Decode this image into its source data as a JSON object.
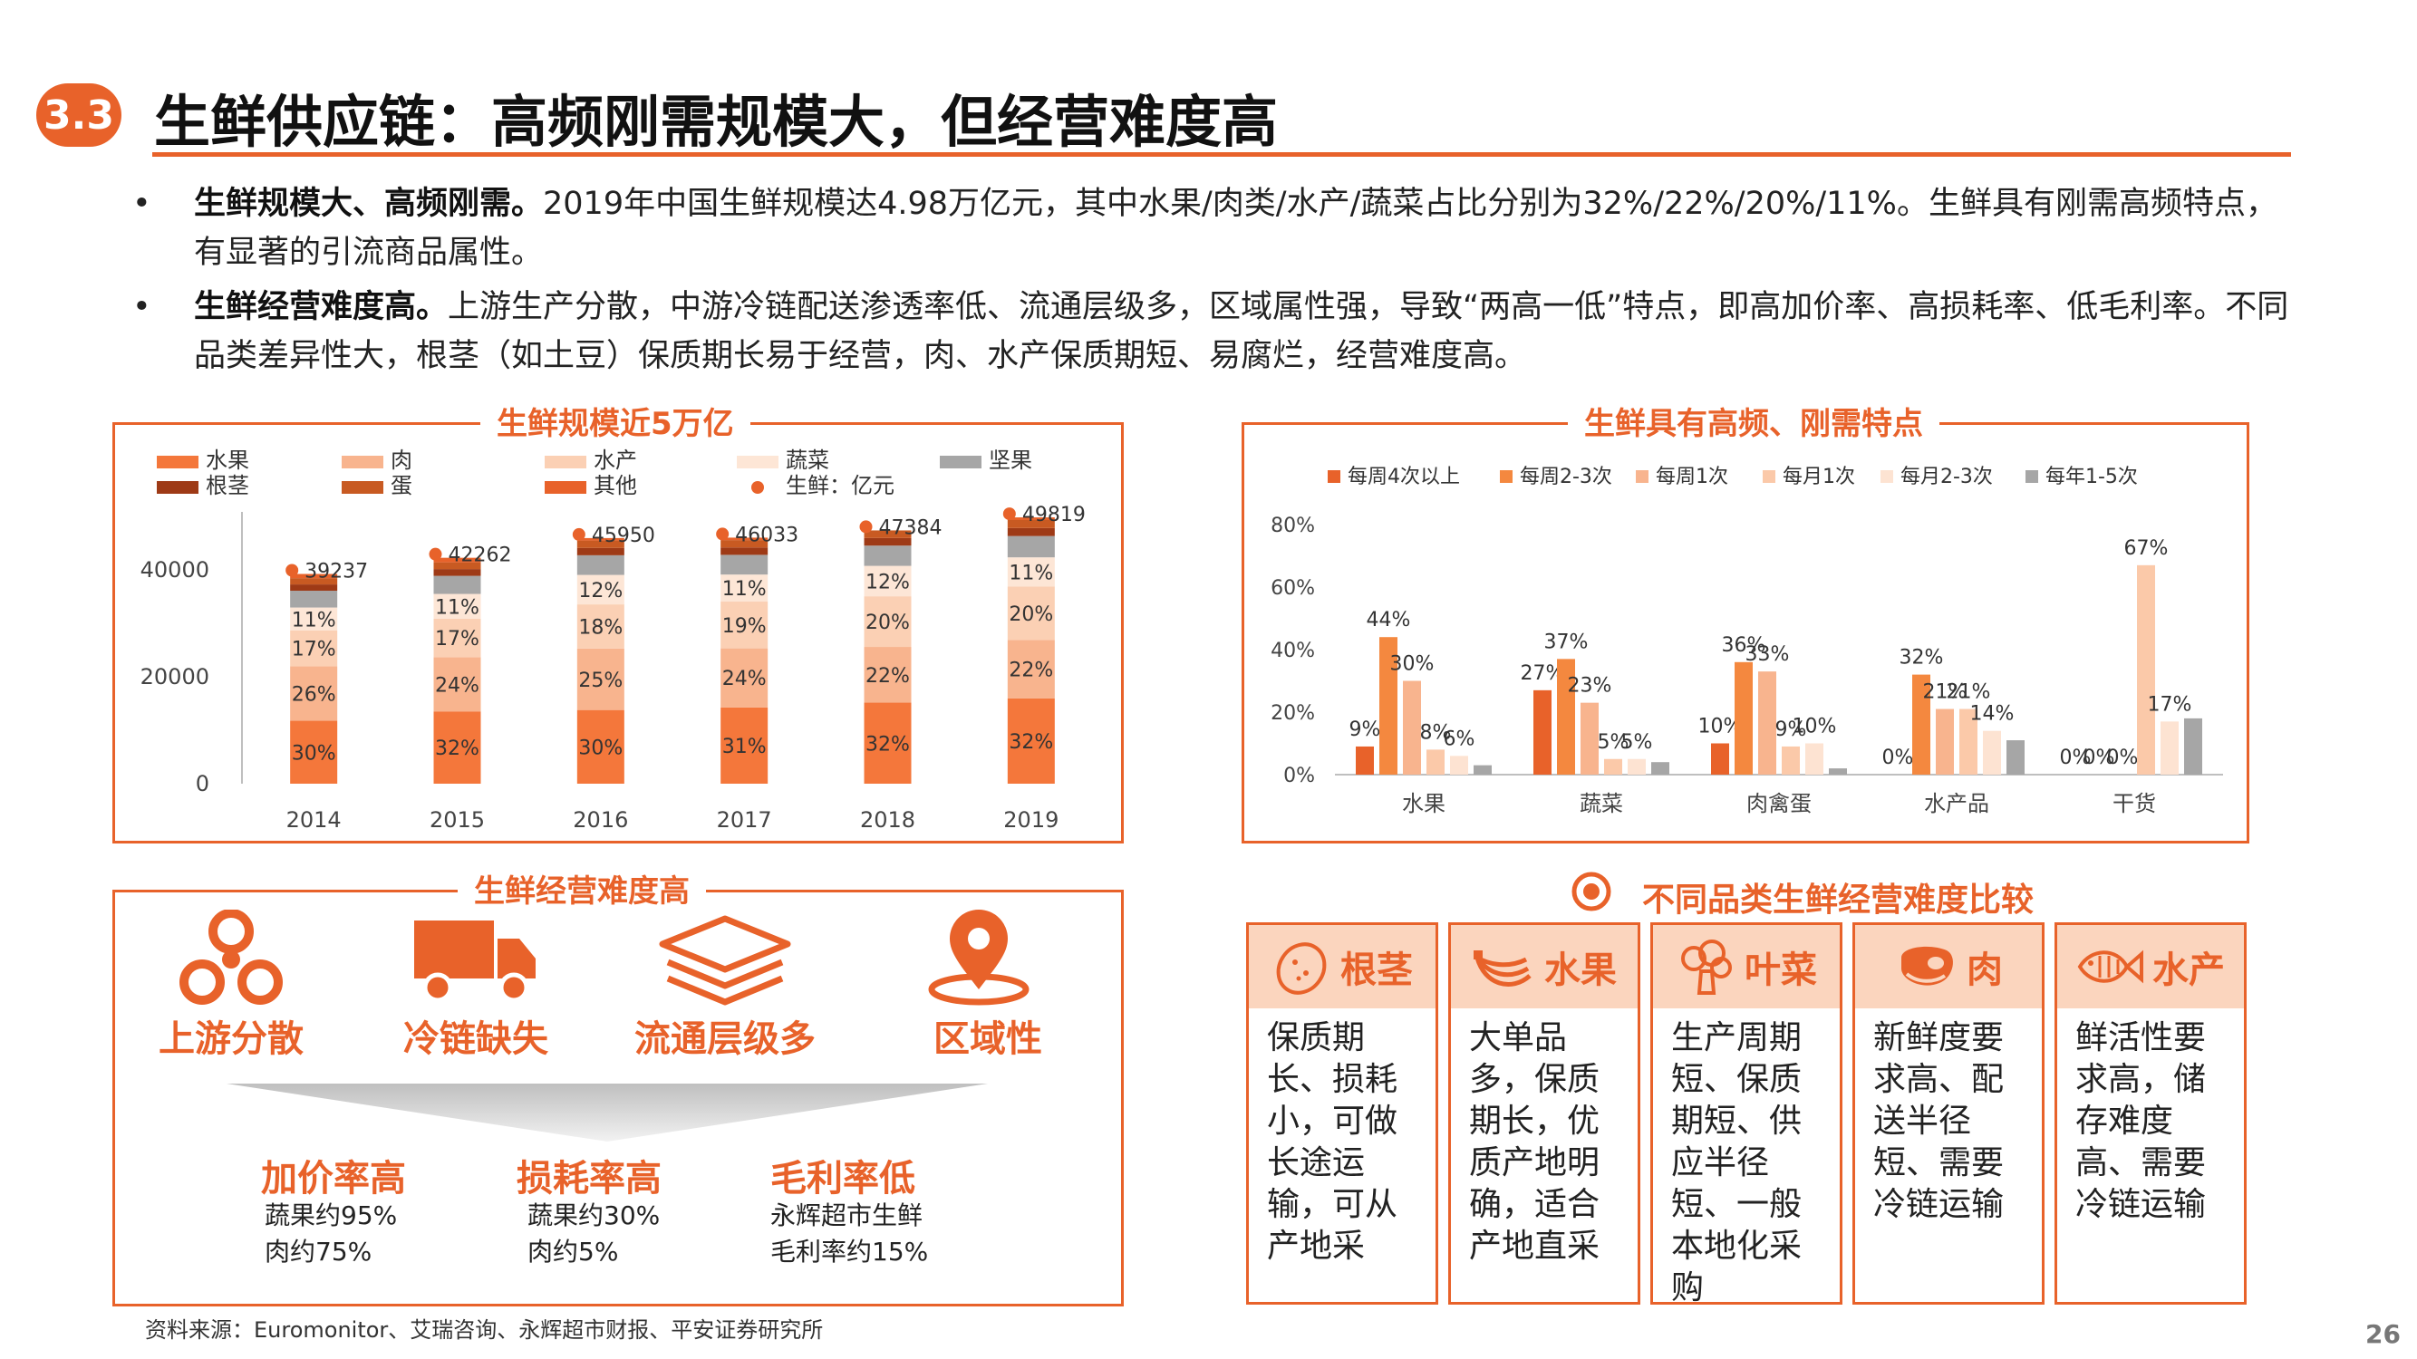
{
  "header": {
    "section": "3.3",
    "title": "生鲜供应链：高频刚需规模大，但经营难度高"
  },
  "bullets": [
    {
      "marker": "•",
      "bold": "生鲜规模大、高频刚需。",
      "text": "2019年中国生鲜规模达4.98万亿元，其中水果/肉类/水产/蔬菜占比分别为32%/22%/20%/11%。生鲜具有刚需高频特点，有显著的引流商品属性。"
    },
    {
      "marker": "•",
      "bold": "生鲜经营难度高。",
      "text": "上游生产分散，中游冷链配送渗透率低、流通层级多，区域属性强，导致“两高一低”特点，即高加价率、高损耗率、低毛利率。不同品类差异性大，根茎（如土豆）保质期长易于经营，肉、水产保质期短、易腐烂，经营难度高。"
    }
  ],
  "chart_data": [
    {
      "type": "bar",
      "stacked": true,
      "title": "生鲜规模近5万亿",
      "categories": [
        "2014",
        "2015",
        "2016",
        "2017",
        "2018",
        "2019"
      ],
      "ylim": [
        0,
        50000
      ],
      "yticks": [
        "0",
        "20000",
        "40000"
      ],
      "series": [
        {
          "name": "水果",
          "color": "#f4773b",
          "values": [
            11771,
            13524,
            13785,
            14270,
            15163,
            15942
          ],
          "labels": [
            "30%",
            "32%",
            "30%",
            "31%",
            "32%",
            "32%"
          ]
        },
        {
          "name": "肉",
          "color": "#f8b48e",
          "values": [
            10202,
            10143,
            11488,
            11048,
            10424,
            10960
          ],
          "labels": [
            "26%",
            "24%",
            "25%",
            "24%",
            "22%",
            "22%"
          ]
        },
        {
          "name": "水产",
          "color": "#fbd0b4",
          "values": [
            6670,
            7185,
            8271,
            8746,
            9477,
            9964
          ],
          "labels": [
            "17%",
            "17%",
            "18%",
            "19%",
            "20%",
            "20%"
          ]
        },
        {
          "name": "蔬菜",
          "color": "#fde6d6",
          "values": [
            4316,
            4649,
            5514,
            5064,
            5686,
            5480
          ],
          "labels": [
            "11%",
            "11%",
            "12%",
            "11%",
            "12%",
            "11%"
          ]
        },
        {
          "name": "坚果",
          "color": "#a6a6a6",
          "values": [
            3139,
            3381,
            3676,
            3683,
            3790,
            3986
          ],
          "labels": [
            "",
            "",
            "",
            "",
            "",
            ""
          ]
        },
        {
          "name": "根茎",
          "color": "#9e3a16",
          "values": [
            1177,
            1268,
            1379,
            1381,
            1421,
            1495
          ],
          "labels": [
            "",
            "",
            "",
            "",
            "",
            ""
          ]
        },
        {
          "name": "蛋",
          "color": "#c85a22",
          "values": [
            1177,
            1268,
            1379,
            1381,
            1421,
            1495
          ],
          "labels": [
            "",
            "",
            "",
            "",
            "",
            ""
          ]
        },
        {
          "name": "其他",
          "color": "#e8622a",
          "values": [
            785,
            845,
            459,
            460,
            0,
            498
          ],
          "labels": [
            "",
            "",
            "",
            "",
            "",
            ""
          ]
        }
      ],
      "totals": {
        "name": "生鲜：亿元",
        "color": "#e8622a",
        "values": [
          39237,
          42262,
          45950,
          46033,
          47384,
          49819
        ]
      }
    },
    {
      "type": "bar",
      "title": "生鲜具有高频、刚需特点",
      "categories": [
        "水果",
        "蔬菜",
        "肉禽蛋",
        "水产品",
        "干货"
      ],
      "ylim": [
        0,
        80
      ],
      "yticks": [
        "0%",
        "20%",
        "40%",
        "60%",
        "80%"
      ],
      "series": [
        {
          "name": "每周4次以上",
          "color": "#e8622a",
          "values": [
            9,
            27,
            10,
            0,
            0
          ],
          "labels": [
            "9%",
            "27%",
            "10%",
            "0%",
            "0%"
          ]
        },
        {
          "name": "每周2-3次",
          "color": "#f4883f",
          "values": [
            44,
            37,
            36,
            32,
            0
          ],
          "labels": [
            "44%",
            "37%",
            "36%",
            "32%",
            "0%"
          ]
        },
        {
          "name": "每周1次",
          "color": "#f8b48e",
          "values": [
            30,
            23,
            33,
            21,
            0
          ],
          "labels": [
            "30%",
            "23%",
            "33%",
            "21%",
            "0%"
          ]
        },
        {
          "name": "每月1次",
          "color": "#fbc9a9",
          "values": [
            8,
            5,
            9,
            21,
            67
          ],
          "labels": [
            "8%",
            "5%",
            "9%",
            "21%",
            "67%"
          ]
        },
        {
          "name": "每月2-3次",
          "color": "#fde3d2",
          "values": [
            6,
            5,
            10,
            14,
            17
          ],
          "labels": [
            "6%",
            "5%",
            "10%",
            "14%",
            "17%"
          ]
        },
        {
          "name": "每年1-5次",
          "color": "#a6a6a6",
          "values": [
            3,
            4,
            2,
            11,
            18
          ],
          "labels": [
            "",
            "",
            "",
            "",
            ""
          ]
        }
      ]
    }
  ],
  "difficulty": {
    "title": "生鲜经营难度高",
    "items": [
      {
        "label": "上游分散",
        "icon": "radiation-icon"
      },
      {
        "label": "冷链缺失",
        "icon": "truck-icon"
      },
      {
        "label": "流通层级多",
        "icon": "layers-icon"
      },
      {
        "label": "区域性",
        "icon": "location-pin-icon"
      }
    ],
    "results": [
      {
        "title": "加价率高",
        "lines": [
          "蔬果约95%",
          "肉约75%"
        ]
      },
      {
        "title": "损耗率高",
        "lines": [
          "蔬果约30%",
          "肉约5%"
        ]
      },
      {
        "title": "毛利率低",
        "lines": [
          "永辉超市生鲜",
          "毛利率约15%"
        ]
      }
    ]
  },
  "comparison": {
    "title": "不同品类生鲜经营难度比较",
    "categories": [
      {
        "name": "根茎",
        "icon": "potato-icon",
        "desc": [
          "保质期",
          "长、损耗",
          "小，可做",
          "长途运",
          "输，可从",
          "产地采"
        ]
      },
      {
        "name": "水果",
        "icon": "banana-icon",
        "desc": [
          "大单品",
          "多，保质",
          "期长，优",
          "质产地明",
          "确，适合",
          "产地直采"
        ]
      },
      {
        "name": "叶菜",
        "icon": "broccoli-icon",
        "desc": [
          "生产周期",
          "短、保质",
          "期短、供",
          "应半径",
          "短、一般",
          "本地化采",
          "购"
        ]
      },
      {
        "name": "肉",
        "icon": "steak-icon",
        "desc": [
          "新鲜度要",
          "求高、配",
          "送半径",
          "短、需要",
          "冷链运输"
        ]
      },
      {
        "name": "水产",
        "icon": "fish-icon",
        "desc": [
          "鲜活性要",
          "求高，储",
          "存难度",
          "高、需要",
          "冷链运输"
        ]
      }
    ]
  },
  "footer": {
    "source": "资料来源：Euromonitor、艾瑞咨询、永辉超市财报、平安证券研究所",
    "page": "26"
  },
  "colors": {
    "accent": "#e8622a",
    "light": "#fbd5be",
    "gray": "#a6a6a6"
  }
}
